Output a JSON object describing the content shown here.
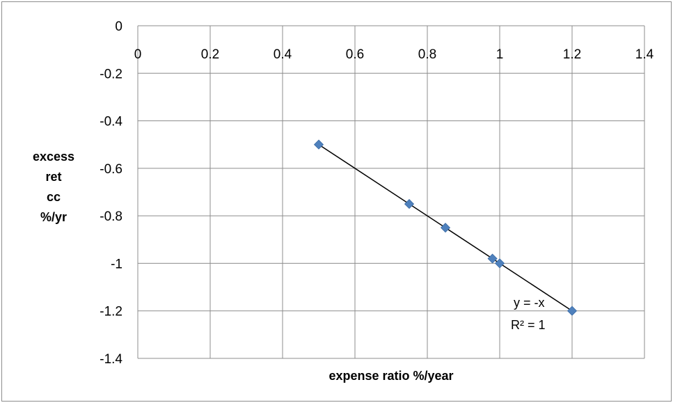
{
  "chart_data": {
    "type": "scatter",
    "title": "",
    "xlabel": "expense ratio %/year",
    "ylabel_lines": [
      "excess",
      "ret",
      "cc",
      "%/yr"
    ],
    "xlim": [
      0,
      1.4
    ],
    "ylim": [
      -1.4,
      0
    ],
    "x_ticks": [
      "0",
      "0.2",
      "0.4",
      "0.6",
      "0.8",
      "1",
      "1.2",
      "1.4"
    ],
    "y_ticks": [
      "0",
      "-0.2",
      "-0.4",
      "-0.6",
      "-0.8",
      "-1",
      "-1.2",
      "-1.4"
    ],
    "grid": true,
    "legend": "none",
    "series": [
      {
        "marker": "diamond",
        "color": "#4f81bd",
        "points": [
          {
            "x": 0.5,
            "y": -0.5
          },
          {
            "x": 0.75,
            "y": -0.75
          },
          {
            "x": 0.85,
            "y": -0.85
          },
          {
            "x": 0.98,
            "y": -0.98
          },
          {
            "x": 1.0,
            "y": -1.0
          },
          {
            "x": 1.2,
            "y": -1.2
          }
        ]
      }
    ],
    "trendline": {
      "type": "linear",
      "slope": -1,
      "intercept": 0,
      "x_range": [
        0.5,
        1.2
      ],
      "color": "#000000",
      "equation": "y = -x",
      "r_squared": "R² = 1"
    }
  }
}
